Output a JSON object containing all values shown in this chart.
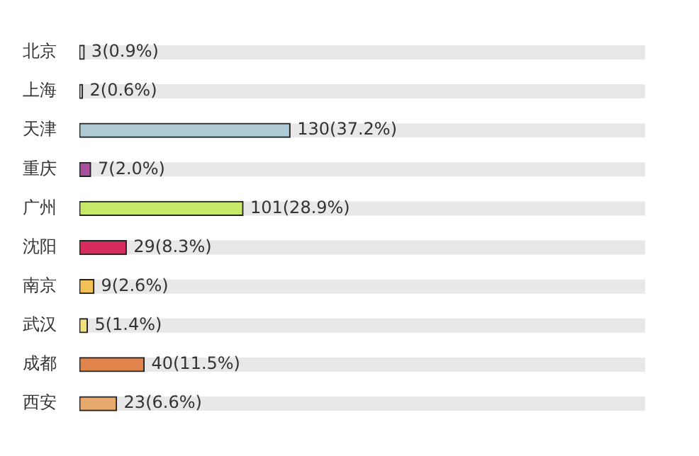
{
  "chart_data": {
    "type": "bar",
    "orientation": "horizontal",
    "categories": [
      "北京",
      "上海",
      "天津",
      "重庆",
      "广州",
      "沈阳",
      "南京",
      "武汉",
      "成都",
      "西安"
    ],
    "values": [
      3,
      2,
      130,
      7,
      101,
      29,
      9,
      5,
      40,
      23
    ],
    "colors": [
      "#e0e0e0",
      "#d8d8d8",
      "#aecbd6",
      "#a8509e",
      "#c8e86a",
      "#d62b5c",
      "#f2c25a",
      "#f2e27a",
      "#e0844c",
      "#e8aa6c"
    ],
    "value_labels": [
      "3(0.9%)",
      "2(0.6%)",
      "130(37.2%)",
      "7(2.0%)",
      "101(28.9%)",
      "29(8.3%)",
      "9(2.6%)",
      "5(1.4%)",
      "40(11.5%)",
      "23(6.6%)"
    ],
    "tick_labels": "y",
    "grid": false,
    "legend": false
  }
}
